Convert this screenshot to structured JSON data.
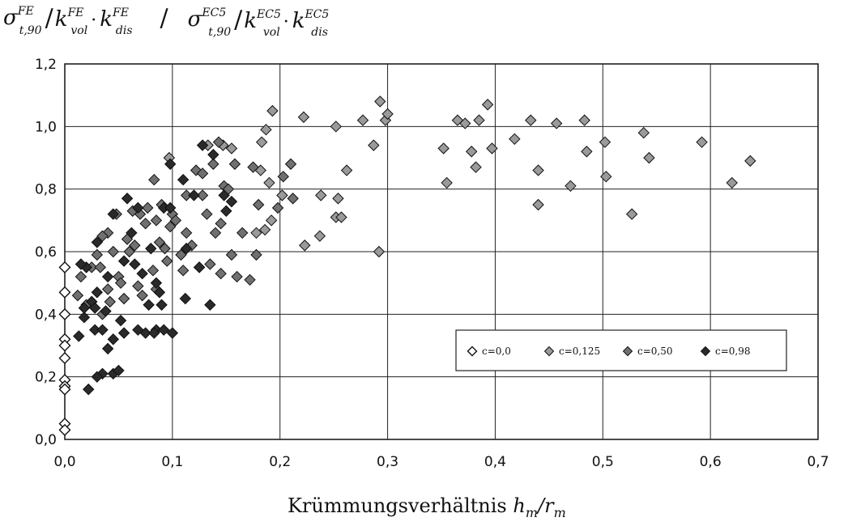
{
  "chart_data": {
    "type": "scatter",
    "title": "",
    "ylabel": {
      "num_sigma": "σ",
      "num_sigma_sup": "FE",
      "num_sigma_sub": "t,90",
      "num_k1": "k",
      "num_k1_sub": "vol",
      "num_k1_sup": "FE",
      "num_k2": "k",
      "num_k2_sub": "dis",
      "num_k2_sup": "FE",
      "slash": "/",
      "den_sigma": "σ",
      "den_sigma_sup": "EC5",
      "den_sigma_sub": "t,90",
      "den_k1": "k",
      "den_k1_sub": "vol",
      "den_k1_sup": "EC5",
      "den_k2": "k",
      "den_k2_sub": "dis",
      "den_k2_sup": "EC5"
    },
    "xlabel": {
      "text": "Krümmungsverhältnis ",
      "var1": "h",
      "var1_sub": "m",
      "slash": "/",
      "var2": "r",
      "var2_sub": "m"
    },
    "xlim": [
      0.0,
      0.7
    ],
    "ylim": [
      0.0,
      1.2
    ],
    "x_ticks": [
      0.0,
      0.1,
      0.2,
      0.3,
      0.4,
      0.5,
      0.6,
      0.7
    ],
    "x_tick_labels": [
      "0,0",
      "0,1",
      "0,2",
      "0,3",
      "0,4",
      "0,5",
      "0,6",
      "0,7"
    ],
    "y_ticks": [
      0.0,
      0.2,
      0.4,
      0.6,
      0.8,
      1.0,
      1.2
    ],
    "y_tick_labels": [
      "0,0",
      "0,2",
      "0,4",
      "0,6",
      "0,8",
      "1,0",
      "1,2"
    ],
    "grid": true,
    "legend_position": "lower-right",
    "series": [
      {
        "name": "c=0,0",
        "marker": "open-diamond",
        "color": "#111111",
        "points": [
          [
            0.0,
            0.55
          ],
          [
            0.0,
            0.47
          ],
          [
            0.0,
            0.4
          ],
          [
            0.0,
            0.32
          ],
          [
            0.0,
            0.3
          ],
          [
            0.0,
            0.26
          ],
          [
            0.0,
            0.19
          ],
          [
            0.0,
            0.17
          ],
          [
            0.0,
            0.16
          ],
          [
            0.0,
            0.05
          ],
          [
            0.0,
            0.03
          ]
        ]
      },
      {
        "name": "c=0,125",
        "marker": "diamond-light",
        "color": "#9a9a9a",
        "points": [
          [
            0.097,
            0.9
          ],
          [
            0.133,
            0.94
          ],
          [
            0.147,
            0.94
          ],
          [
            0.155,
            0.93
          ],
          [
            0.193,
            1.05
          ],
          [
            0.222,
            1.03
          ],
          [
            0.252,
            1.0
          ],
          [
            0.277,
            1.02
          ],
          [
            0.293,
            1.08
          ],
          [
            0.298,
            1.02
          ],
          [
            0.3,
            1.04
          ],
          [
            0.365,
            1.02
          ],
          [
            0.372,
            1.01
          ],
          [
            0.385,
            1.02
          ],
          [
            0.393,
            1.07
          ],
          [
            0.433,
            1.02
          ],
          [
            0.457,
            1.01
          ],
          [
            0.483,
            1.02
          ],
          [
            0.187,
            0.99
          ],
          [
            0.202,
            0.78
          ],
          [
            0.183,
            0.95
          ],
          [
            0.262,
            0.86
          ],
          [
            0.287,
            0.94
          ],
          [
            0.238,
            0.78
          ],
          [
            0.254,
            0.77
          ],
          [
            0.237,
            0.65
          ],
          [
            0.223,
            0.62
          ],
          [
            0.252,
            0.71
          ],
          [
            0.257,
            0.71
          ],
          [
            0.292,
            0.6
          ],
          [
            0.352,
            0.93
          ],
          [
            0.355,
            0.82
          ],
          [
            0.378,
            0.92
          ],
          [
            0.382,
            0.87
          ],
          [
            0.397,
            0.93
          ],
          [
            0.418,
            0.96
          ],
          [
            0.44,
            0.86
          ],
          [
            0.44,
            0.75
          ],
          [
            0.47,
            0.81
          ],
          [
            0.485,
            0.92
          ],
          [
            0.502,
            0.95
          ],
          [
            0.503,
            0.84
          ],
          [
            0.527,
            0.72
          ],
          [
            0.538,
            0.98
          ],
          [
            0.543,
            0.9
          ],
          [
            0.592,
            0.95
          ],
          [
            0.62,
            0.82
          ],
          [
            0.637,
            0.89
          ],
          [
            0.182,
            0.86
          ],
          [
            0.19,
            0.82
          ],
          [
            0.192,
            0.7
          ],
          [
            0.178,
            0.66
          ],
          [
            0.186,
            0.67
          ]
        ]
      },
      {
        "name": "c=0,50",
        "marker": "diamond-medium",
        "color": "#707070",
        "points": [
          [
            0.083,
            0.83
          ],
          [
            0.09,
            0.75
          ],
          [
            0.1,
            0.72
          ],
          [
            0.113,
            0.78
          ],
          [
            0.122,
            0.86
          ],
          [
            0.128,
            0.85
          ],
          [
            0.138,
            0.88
          ],
          [
            0.143,
            0.95
          ],
          [
            0.148,
            0.81
          ],
          [
            0.152,
            0.8
          ],
          [
            0.158,
            0.88
          ],
          [
            0.175,
            0.87
          ],
          [
            0.18,
            0.75
          ],
          [
            0.198,
            0.74
          ],
          [
            0.203,
            0.84
          ],
          [
            0.21,
            0.88
          ],
          [
            0.212,
            0.77
          ],
          [
            0.128,
            0.78
          ],
          [
            0.132,
            0.72
          ],
          [
            0.14,
            0.66
          ],
          [
            0.145,
            0.69
          ],
          [
            0.155,
            0.59
          ],
          [
            0.165,
            0.66
          ],
          [
            0.16,
            0.52
          ],
          [
            0.172,
            0.51
          ],
          [
            0.178,
            0.59
          ],
          [
            0.118,
            0.62
          ],
          [
            0.113,
            0.66
          ],
          [
            0.108,
            0.59
          ],
          [
            0.11,
            0.54
          ],
          [
            0.125,
            0.55
          ],
          [
            0.135,
            0.56
          ],
          [
            0.145,
            0.53
          ],
          [
            0.093,
            0.61
          ],
          [
            0.088,
            0.63
          ],
          [
            0.082,
            0.54
          ],
          [
            0.085,
            0.48
          ],
          [
            0.075,
            0.69
          ],
          [
            0.07,
            0.72
          ],
          [
            0.065,
            0.62
          ],
          [
            0.06,
            0.6
          ],
          [
            0.068,
            0.49
          ],
          [
            0.072,
            0.46
          ],
          [
            0.055,
            0.45
          ],
          [
            0.05,
            0.52
          ],
          [
            0.052,
            0.5
          ],
          [
            0.045,
            0.6
          ],
          [
            0.04,
            0.66
          ],
          [
            0.035,
            0.65
          ],
          [
            0.03,
            0.59
          ],
          [
            0.025,
            0.55
          ],
          [
            0.033,
            0.55
          ],
          [
            0.04,
            0.48
          ],
          [
            0.042,
            0.44
          ],
          [
            0.035,
            0.4
          ],
          [
            0.025,
            0.44
          ],
          [
            0.02,
            0.43
          ],
          [
            0.015,
            0.52
          ],
          [
            0.02,
            0.55
          ],
          [
            0.012,
            0.46
          ],
          [
            0.048,
            0.72
          ],
          [
            0.058,
            0.64
          ],
          [
            0.063,
            0.73
          ],
          [
            0.077,
            0.74
          ],
          [
            0.085,
            0.7
          ],
          [
            0.095,
            0.57
          ],
          [
            0.098,
            0.68
          ],
          [
            0.103,
            0.7
          ]
        ]
      },
      {
        "name": "c=0,98",
        "marker": "diamond-dark",
        "color": "#2a2a2a",
        "points": [
          [
            0.092,
            0.74
          ],
          [
            0.098,
            0.74
          ],
          [
            0.11,
            0.83
          ],
          [
            0.12,
            0.78
          ],
          [
            0.128,
            0.94
          ],
          [
            0.138,
            0.91
          ],
          [
            0.098,
            0.88
          ],
          [
            0.068,
            0.74
          ],
          [
            0.058,
            0.77
          ],
          [
            0.045,
            0.72
          ],
          [
            0.03,
            0.63
          ],
          [
            0.02,
            0.55
          ],
          [
            0.025,
            0.44
          ],
          [
            0.018,
            0.39
          ],
          [
            0.013,
            0.33
          ],
          [
            0.028,
            0.35
          ],
          [
            0.035,
            0.35
          ],
          [
            0.045,
            0.32
          ],
          [
            0.055,
            0.34
          ],
          [
            0.068,
            0.35
          ],
          [
            0.075,
            0.34
          ],
          [
            0.085,
            0.35
          ],
          [
            0.1,
            0.34
          ],
          [
            0.04,
            0.29
          ],
          [
            0.045,
            0.21
          ],
          [
            0.05,
            0.22
          ],
          [
            0.035,
            0.21
          ],
          [
            0.03,
            0.2
          ],
          [
            0.022,
            0.16
          ],
          [
            0.112,
            0.45
          ],
          [
            0.135,
            0.43
          ],
          [
            0.125,
            0.55
          ],
          [
            0.113,
            0.61
          ],
          [
            0.148,
            0.78
          ],
          [
            0.15,
            0.73
          ],
          [
            0.155,
            0.76
          ],
          [
            0.065,
            0.56
          ],
          [
            0.078,
            0.43
          ],
          [
            0.085,
            0.5
          ],
          [
            0.088,
            0.47
          ],
          [
            0.052,
            0.38
          ],
          [
            0.038,
            0.41
          ],
          [
            0.028,
            0.42
          ],
          [
            0.015,
            0.56
          ],
          [
            0.062,
            0.66
          ],
          [
            0.072,
            0.53
          ],
          [
            0.08,
            0.61
          ],
          [
            0.09,
            0.43
          ],
          [
            0.018,
            0.42
          ],
          [
            0.03,
            0.47
          ],
          [
            0.04,
            0.52
          ],
          [
            0.055,
            0.57
          ],
          [
            0.083,
            0.34
          ],
          [
            0.092,
            0.35
          ]
        ]
      }
    ]
  }
}
